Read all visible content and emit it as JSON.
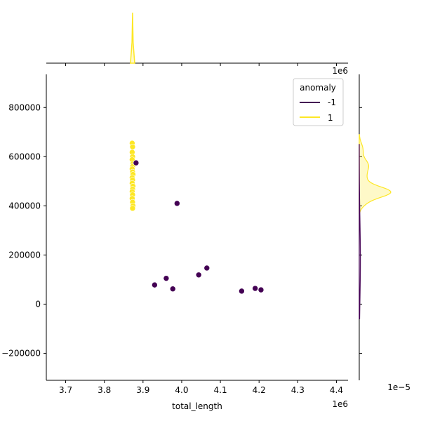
{
  "chart_data": {
    "type": "scatter",
    "title": "",
    "xlabel": "total_length",
    "ylabel": "",
    "x_offset_label": "1e6",
    "y_offset_label": "1e6",
    "marginal_offset_label": "1e−5",
    "xlim": [
      3.65,
      4.43
    ],
    "ylim": [
      -310000,
      935000
    ],
    "x_ticks": [
      3.7,
      3.8,
      3.9,
      4.0,
      4.1,
      4.2,
      4.3,
      4.4
    ],
    "x_tick_labels": [
      "3.7",
      "3.8",
      "3.9",
      "4.0",
      "4.1",
      "4.2",
      "4.3",
      "4.4"
    ],
    "y_ticks": [
      -200000,
      0,
      200000,
      400000,
      600000,
      800000
    ],
    "y_tick_labels": [
      "−200000",
      "0",
      "200000",
      "400000",
      "600000",
      "800000"
    ],
    "grid": false,
    "legend": {
      "title": "anomaly",
      "placement": "top-right",
      "entries": [
        {
          "label": "-1",
          "color": "#440154"
        },
        {
          "label": "1",
          "color": "#fde725"
        }
      ]
    },
    "series": [
      {
        "name": "-1",
        "color": "#440154",
        "x": [
          3.882,
          3.988,
          3.93,
          3.96,
          3.977,
          4.044,
          4.065,
          4.155,
          4.19,
          4.205
        ],
        "y": [
          575000,
          410000,
          78000,
          105000,
          62000,
          119000,
          147000,
          53000,
          64000,
          58000
        ]
      },
      {
        "name": "1",
        "color": "#fde725",
        "x": [
          3.872,
          3.873,
          3.872,
          3.873,
          3.872,
          3.874,
          3.873,
          3.872,
          3.873,
          3.874,
          3.872,
          3.873,
          3.872,
          3.874,
          3.873,
          3.872,
          3.873,
          3.872,
          3.873,
          3.874,
          3.873
        ],
        "y": [
          655000,
          640000,
          618000,
          600000,
          588000,
          572000,
          560000,
          550000,
          538000,
          528000,
          515000,
          505000,
          492000,
          480000,
          468000,
          458000,
          445000,
          430000,
          415000,
          400000,
          390000
        ]
      }
    ],
    "marginal_x_peak": 3.873,
    "marginal_y_peak": 455000
  }
}
